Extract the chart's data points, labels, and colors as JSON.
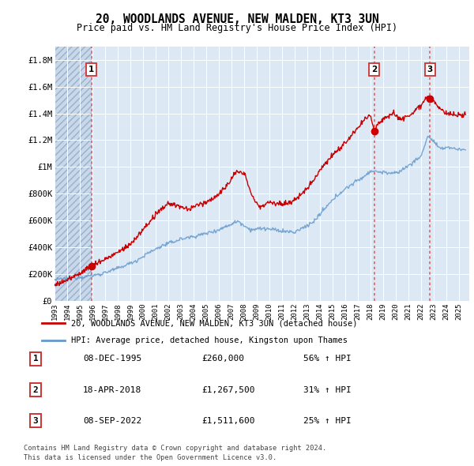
{
  "title": "20, WOODLANDS AVENUE, NEW MALDEN, KT3 3UN",
  "subtitle": "Price paid vs. HM Land Registry's House Price Index (HPI)",
  "legend_label_red": "20, WOODLANDS AVENUE, NEW MALDEN, KT3 3UN (detached house)",
  "legend_label_blue": "HPI: Average price, detached house, Kingston upon Thames",
  "footer1": "Contains HM Land Registry data © Crown copyright and database right 2024.",
  "footer2": "This data is licensed under the Open Government Licence v3.0.",
  "sale_annotations": [
    {
      "label": "1",
      "date": "08-DEC-1995",
      "price": "£260,000",
      "hpi": "56% ↑ HPI"
    },
    {
      "label": "2",
      "date": "18-APR-2018",
      "price": "£1,267,500",
      "hpi": "31% ↑ HPI"
    },
    {
      "label": "3",
      "date": "08-SEP-2022",
      "price": "£1,511,600",
      "hpi": "25% ↑ HPI"
    }
  ],
  "sale_years": [
    1995.92,
    2018.29,
    2022.69
  ],
  "sale_prices": [
    260000,
    1267500,
    1511600
  ],
  "ylim": [
    0,
    1900000
  ],
  "background_color": "#dce9f5",
  "hatch_color": "#b8cfe0",
  "grid_color": "#ffffff",
  "red_line_color": "#cc0000",
  "blue_line_color": "#6699cc",
  "sale_marker_color": "#cc0000",
  "dashed_line_color": "#cc4444"
}
